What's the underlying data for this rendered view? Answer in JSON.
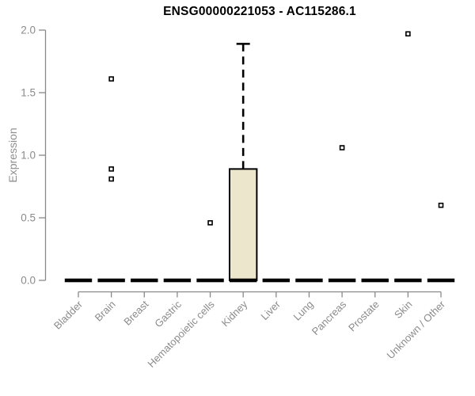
{
  "chart_data": {
    "type": "box",
    "title": "ENSG00000221053 - AC115286.1",
    "ylabel": "Expression",
    "xlabel": "",
    "ylim": [
      0.0,
      2.0
    ],
    "yticks": [
      0.0,
      0.5,
      1.0,
      1.5,
      2.0
    ],
    "ytick_labels": [
      "0.0",
      "0.5",
      "1.0",
      "1.5",
      "2.0"
    ],
    "grid": false,
    "legend": null,
    "categories": [
      "Bladder",
      "Brain",
      "Breast",
      "Gastric",
      "Hematopoietic cells",
      "Kidney",
      "Liver",
      "Lung",
      "Pancreas",
      "Prostate",
      "Skin",
      "Unknown / Other"
    ],
    "series": [
      {
        "category": "Bladder",
        "q1": 0,
        "median": 0,
        "q3": 0,
        "whisker_low": 0,
        "whisker_high": 0,
        "outliers": []
      },
      {
        "category": "Brain",
        "q1": 0,
        "median": 0,
        "q3": 0,
        "whisker_low": 0,
        "whisker_high": 0,
        "outliers": [
          1.61,
          0.89,
          0.81
        ]
      },
      {
        "category": "Breast",
        "q1": 0,
        "median": 0,
        "q3": 0,
        "whisker_low": 0,
        "whisker_high": 0,
        "outliers": []
      },
      {
        "category": "Gastric",
        "q1": 0,
        "median": 0,
        "q3": 0,
        "whisker_low": 0,
        "whisker_high": 0,
        "outliers": []
      },
      {
        "category": "Hematopoietic cells",
        "q1": 0,
        "median": 0,
        "q3": 0,
        "whisker_low": 0,
        "whisker_high": 0,
        "outliers": [
          0.46
        ]
      },
      {
        "category": "Kidney",
        "q1": 0,
        "median": 0,
        "q3": 0.89,
        "whisker_low": 0,
        "whisker_high": 1.89,
        "outliers": []
      },
      {
        "category": "Liver",
        "q1": 0,
        "median": 0,
        "q3": 0,
        "whisker_low": 0,
        "whisker_high": 0,
        "outliers": []
      },
      {
        "category": "Lung",
        "q1": 0,
        "median": 0,
        "q3": 0,
        "whisker_low": 0,
        "whisker_high": 0,
        "outliers": []
      },
      {
        "category": "Pancreas",
        "q1": 0,
        "median": 0,
        "q3": 0,
        "whisker_low": 0,
        "whisker_high": 0,
        "outliers": [
          1.06
        ]
      },
      {
        "category": "Prostate",
        "q1": 0,
        "median": 0,
        "q3": 0,
        "whisker_low": 0,
        "whisker_high": 0,
        "outliers": []
      },
      {
        "category": "Skin",
        "q1": 0,
        "median": 0,
        "q3": 0,
        "whisker_low": 0,
        "whisker_high": 0,
        "outliers": [
          1.97
        ]
      },
      {
        "category": "Unknown / Other",
        "q1": 0,
        "median": 0,
        "q3": 0,
        "whisker_low": 0,
        "whisker_high": 0,
        "outliers": [
          0.6
        ]
      }
    ],
    "colors": {
      "box_fill": "#ece6cd",
      "box_border": "#000000",
      "median": "#000000",
      "whisker": "#000000",
      "outlier_fill": "#ffffff",
      "outlier_border": "#000000",
      "axis": "#898989",
      "tick_label": "#8b8b8b",
      "title": "#000000"
    }
  }
}
